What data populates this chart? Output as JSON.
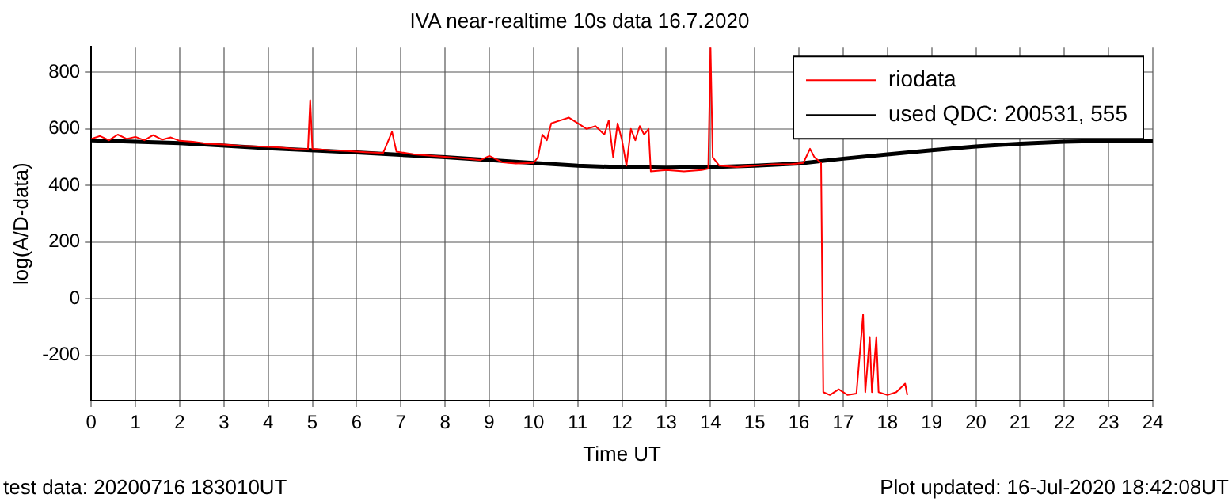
{
  "chart_data": {
    "type": "line",
    "title": "IVA near-realtime 10s data 16.7.2020",
    "xlabel": "Time UT",
    "ylabel": "log(A/D-data)",
    "xlim": [
      0,
      24
    ],
    "xticks": [
      0,
      1,
      2,
      3,
      4,
      5,
      6,
      7,
      8,
      9,
      10,
      11,
      12,
      13,
      14,
      15,
      16,
      17,
      18,
      19,
      20,
      21,
      22,
      23,
      24
    ],
    "ylim": [
      -360,
      890
    ],
    "yticks": [
      -200,
      0,
      200,
      400,
      600,
      800
    ],
    "grid": true,
    "legend": "top right",
    "marker": "none",
    "line_style": "solid",
    "annotations": [
      "test data: 20200716 183010UT",
      "Plot updated: 16-Jul-2020 18:42:08UT"
    ],
    "series": [
      {
        "name": "riodata",
        "color": "#ff0000",
        "x": [
          0,
          0.2,
          0.4,
          0.6,
          0.8,
          1.0,
          1.2,
          1.4,
          1.6,
          1.8,
          2.0,
          2.3,
          2.6,
          3.0,
          3.4,
          3.8,
          4.2,
          4.6,
          4.9,
          4.95,
          5.0,
          5.4,
          5.8,
          6.2,
          6.6,
          6.8,
          6.9,
          7.3,
          7.7,
          8.1,
          8.5,
          8.8,
          9.0,
          9.3,
          9.6,
          10.0,
          10.1,
          10.2,
          10.3,
          10.4,
          10.6,
          10.8,
          11.0,
          11.2,
          11.4,
          11.6,
          11.7,
          11.8,
          11.9,
          12.0,
          12.1,
          12.2,
          12.3,
          12.4,
          12.5,
          12.6,
          12.65,
          13.0,
          13.4,
          13.8,
          13.95,
          14.0,
          14.05,
          14.2,
          14.6,
          15.0,
          15.4,
          15.8,
          16.1,
          16.25,
          16.35,
          16.5,
          16.55,
          16.7,
          16.9,
          17.1,
          17.3,
          17.45,
          17.5,
          17.6,
          17.65,
          17.75,
          17.8,
          18.0,
          18.2,
          18.4,
          18.45
        ],
        "values": [
          565,
          575,
          560,
          580,
          565,
          572,
          560,
          578,
          562,
          570,
          558,
          555,
          548,
          545,
          540,
          538,
          535,
          530,
          528,
          702,
          530,
          525,
          522,
          518,
          515,
          590,
          520,
          510,
          505,
          500,
          495,
          490,
          505,
          482,
          478,
          480,
          500,
          580,
          560,
          620,
          630,
          640,
          620,
          600,
          610,
          580,
          630,
          500,
          620,
          560,
          470,
          600,
          560,
          610,
          580,
          600,
          450,
          455,
          450,
          455,
          460,
          890,
          500,
          470,
          465,
          470,
          475,
          475,
          480,
          530,
          500,
          480,
          -330,
          -340,
          -320,
          -340,
          -335,
          -56,
          -330,
          -135,
          -330,
          -135,
          -330,
          -340,
          -330,
          -300,
          -340
        ]
      },
      {
        "name": "used QDC: 200531, 555",
        "color": "#000000",
        "x": [
          0,
          2,
          4,
          6,
          8,
          10,
          11,
          12,
          13,
          14,
          15,
          16,
          17,
          18,
          19,
          20,
          21,
          22,
          23,
          24
        ],
        "values": [
          560,
          550,
          532,
          517,
          500,
          480,
          470,
          465,
          463,
          465,
          470,
          478,
          495,
          510,
          525,
          538,
          548,
          555,
          558,
          558
        ]
      }
    ]
  }
}
